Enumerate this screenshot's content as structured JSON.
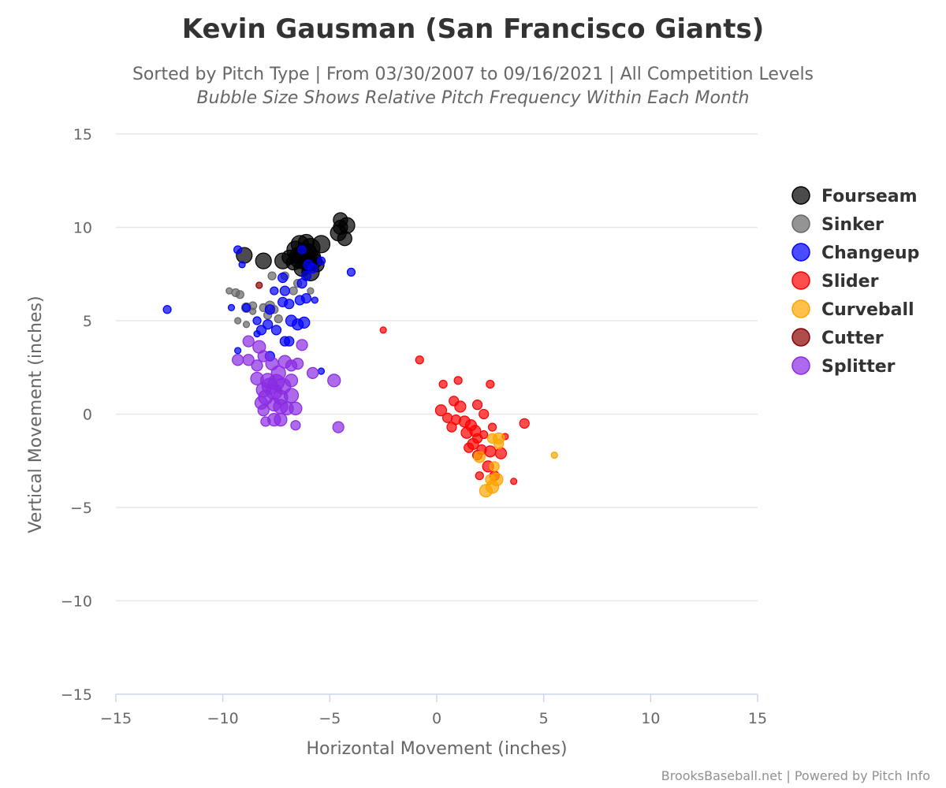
{
  "chart_data": {
    "type": "scatter",
    "title": "Kevin Gausman (San Francisco Giants)",
    "subtitle": "Sorted by Pitch Type | From 03/30/2007 to 09/16/2021 | All Competition Levels",
    "subtitle2": "Bubble Size Shows Relative Pitch Frequency Within Each Month",
    "xlabel": "Horizontal Movement (inches)",
    "ylabel": "Vertical Movement (inches)",
    "xlim": [
      -15,
      15
    ],
    "ylim": [
      -15,
      15
    ],
    "xticks": [
      -15,
      -10,
      -5,
      0,
      5,
      10,
      15
    ],
    "yticks": [
      -15,
      -10,
      -5,
      0,
      5,
      10,
      15
    ],
    "xtick_labels": [
      "−15",
      "−10",
      "−5",
      "0",
      "5",
      "10",
      "15"
    ],
    "ytick_labels": [
      "−15",
      "−10",
      "−5",
      "0",
      "5",
      "10",
      "15"
    ],
    "grid": "horizontal",
    "legend_position": "right",
    "credits": "BrooksBaseball.net | Powered by Pitch Info",
    "series": [
      {
        "name": "Fourseam",
        "color": "#000000",
        "points": [
          [
            -9.0,
            8.5,
            10
          ],
          [
            -8.1,
            8.2,
            10
          ],
          [
            -7.2,
            8.2,
            10
          ],
          [
            -6.9,
            8.4,
            9
          ],
          [
            -6.6,
            8.8,
            11
          ],
          [
            -6.4,
            9.1,
            11
          ],
          [
            -6.1,
            9.2,
            10
          ],
          [
            -5.9,
            8.9,
            12
          ],
          [
            -6.2,
            8.6,
            12
          ],
          [
            -6.4,
            8.3,
            12
          ],
          [
            -6.0,
            8.1,
            11
          ],
          [
            -5.8,
            8.4,
            10
          ],
          [
            -5.6,
            8.0,
            9
          ],
          [
            -5.4,
            9.1,
            11
          ],
          [
            -6.3,
            7.8,
            10
          ],
          [
            -6.7,
            8.1,
            9
          ],
          [
            -5.9,
            7.6,
            11
          ],
          [
            -4.5,
            10.4,
            9
          ],
          [
            -4.5,
            10.0,
            9
          ],
          [
            -4.6,
            9.7,
            10
          ],
          [
            -4.2,
            10.1,
            10
          ],
          [
            -4.3,
            9.4,
            9
          ],
          [
            -6.0,
            8.7,
            10
          ],
          [
            -5.7,
            8.2,
            9
          ],
          [
            -6.5,
            8.5,
            10
          ]
        ]
      },
      {
        "name": "Sinker",
        "color": "#666666",
        "points": [
          [
            -9.7,
            6.6,
            4
          ],
          [
            -9.4,
            6.5,
            5
          ],
          [
            -9.2,
            6.4,
            5
          ],
          [
            -8.9,
            5.7,
            6
          ],
          [
            -8.6,
            5.8,
            5
          ],
          [
            -8.6,
            5.5,
            4
          ],
          [
            -8.1,
            5.7,
            5
          ],
          [
            -7.8,
            5.8,
            6
          ],
          [
            -7.6,
            5.6,
            5
          ],
          [
            -7.4,
            5.1,
            5
          ],
          [
            -7.9,
            5.3,
            5
          ],
          [
            -9.3,
            5.0,
            4
          ],
          [
            -8.9,
            4.8,
            4
          ],
          [
            -7.7,
            7.4,
            5
          ],
          [
            -6.7,
            6.6,
            5
          ],
          [
            -5.9,
            6.6,
            4
          ],
          [
            -7.1,
            7.4,
            5
          ],
          [
            -6.5,
            7.0,
            5
          ]
        ]
      },
      {
        "name": "Changeup",
        "color": "#0000ff",
        "points": [
          [
            -9.3,
            8.8,
            5
          ],
          [
            -9.1,
            8.0,
            4
          ],
          [
            -12.6,
            5.6,
            5
          ],
          [
            -9.6,
            5.7,
            4
          ],
          [
            -8.9,
            5.7,
            5
          ],
          [
            -8.4,
            5.0,
            5
          ],
          [
            -8.2,
            4.5,
            6
          ],
          [
            -7.9,
            4.8,
            6
          ],
          [
            -7.8,
            5.6,
            6
          ],
          [
            -7.5,
            4.5,
            6
          ],
          [
            -7.2,
            6.0,
            6
          ],
          [
            -6.9,
            5.9,
            6
          ],
          [
            -6.8,
            5.0,
            7
          ],
          [
            -6.5,
            4.8,
            7
          ],
          [
            -6.2,
            4.9,
            7
          ],
          [
            -6.4,
            6.1,
            6
          ],
          [
            -6.1,
            6.2,
            6
          ],
          [
            -6.3,
            7.0,
            6
          ],
          [
            -6.1,
            7.4,
            6
          ],
          [
            -6.0,
            8.0,
            6
          ],
          [
            -5.8,
            7.8,
            6
          ],
          [
            -7.2,
            7.3,
            6
          ],
          [
            -7.1,
            6.6,
            6
          ],
          [
            -6.3,
            8.8,
            5
          ],
          [
            -5.4,
            8.2,
            5
          ],
          [
            -4.0,
            7.6,
            5
          ],
          [
            -7.1,
            3.9,
            6
          ],
          [
            -6.9,
            3.9,
            6
          ],
          [
            -7.8,
            3.1,
            6
          ],
          [
            -5.4,
            2.3,
            4
          ],
          [
            -8.4,
            4.3,
            4
          ],
          [
            -9.3,
            3.4,
            4
          ],
          [
            -7.6,
            6.6,
            5
          ],
          [
            -5.7,
            6.1,
            4
          ]
        ]
      },
      {
        "name": "Slider",
        "color": "#ff0000",
        "points": [
          [
            -2.5,
            4.5,
            4
          ],
          [
            -0.8,
            2.9,
            5
          ],
          [
            0.3,
            1.6,
            5
          ],
          [
            1.0,
            1.8,
            5
          ],
          [
            2.5,
            1.6,
            5
          ],
          [
            0.8,
            0.7,
            6
          ],
          [
            1.1,
            0.4,
            7
          ],
          [
            0.2,
            0.2,
            7
          ],
          [
            0.5,
            -0.2,
            6
          ],
          [
            0.9,
            -0.3,
            6
          ],
          [
            1.3,
            -0.4,
            7
          ],
          [
            1.6,
            -0.6,
            7
          ],
          [
            1.8,
            -0.9,
            7
          ],
          [
            1.4,
            -1.0,
            7
          ],
          [
            0.7,
            -0.7,
            6
          ],
          [
            1.9,
            -1.3,
            6
          ],
          [
            2.2,
            -1.1,
            5
          ],
          [
            1.7,
            -1.6,
            7
          ],
          [
            1.5,
            -1.8,
            6
          ],
          [
            2.1,
            -1.9,
            6
          ],
          [
            2.5,
            -2.0,
            7
          ],
          [
            3.0,
            -2.1,
            7
          ],
          [
            1.9,
            -2.2,
            6
          ],
          [
            2.4,
            -2.8,
            7
          ],
          [
            2.7,
            -3.3,
            6
          ],
          [
            2.0,
            -3.3,
            5
          ],
          [
            3.6,
            -3.6,
            4
          ],
          [
            4.1,
            -0.5,
            6
          ],
          [
            3.2,
            -1.2,
            4
          ],
          [
            2.6,
            -0.7,
            5
          ],
          [
            1.9,
            0.5,
            6
          ],
          [
            2.2,
            0.0,
            6
          ]
        ]
      },
      {
        "name": "Curveball",
        "color": "#ffa500",
        "points": [
          [
            2.9,
            -1.3,
            7
          ],
          [
            2.6,
            -1.3,
            6
          ],
          [
            2.9,
            -1.6,
            6
          ],
          [
            2.0,
            -2.3,
            7
          ],
          [
            2.7,
            -2.8,
            6
          ],
          [
            2.8,
            -3.5,
            8
          ],
          [
            2.5,
            -3.5,
            6
          ],
          [
            2.6,
            -3.9,
            8
          ],
          [
            2.3,
            -4.1,
            8
          ],
          [
            5.5,
            -2.2,
            4
          ]
        ]
      },
      {
        "name": "Cutter",
        "color": "#8b0000",
        "points": [
          [
            -8.3,
            6.9,
            4
          ]
        ]
      },
      {
        "name": "Splitter",
        "color": "#8a2be2",
        "points": [
          [
            -8.8,
            3.9,
            7
          ],
          [
            -8.3,
            3.6,
            8
          ],
          [
            -8.1,
            3.1,
            7
          ],
          [
            -9.3,
            2.9,
            7
          ],
          [
            -8.8,
            2.9,
            7
          ],
          [
            -8.4,
            2.6,
            7
          ],
          [
            -7.7,
            2.7,
            8
          ],
          [
            -7.1,
            2.8,
            8
          ],
          [
            -6.8,
            2.6,
            7
          ],
          [
            -6.5,
            2.7,
            7
          ],
          [
            -6.3,
            3.7,
            7
          ],
          [
            -5.8,
            2.2,
            7
          ],
          [
            -4.8,
            1.8,
            8
          ],
          [
            -8.4,
            1.9,
            8
          ],
          [
            -7.9,
            1.8,
            9
          ],
          [
            -7.5,
            1.7,
            10
          ],
          [
            -7.2,
            1.5,
            10
          ],
          [
            -7.6,
            1.2,
            10
          ],
          [
            -8.1,
            1.3,
            9
          ],
          [
            -8.0,
            0.9,
            9
          ],
          [
            -7.3,
            0.9,
            9
          ],
          [
            -6.8,
            1.0,
            9
          ],
          [
            -6.8,
            1.8,
            8
          ],
          [
            -8.2,
            0.6,
            8
          ],
          [
            -7.6,
            0.5,
            8
          ],
          [
            -7.3,
            0.4,
            9
          ],
          [
            -7.0,
            0.3,
            8
          ],
          [
            -6.6,
            0.3,
            8
          ],
          [
            -8.1,
            0.2,
            7
          ],
          [
            -8.0,
            -0.4,
            6
          ],
          [
            -7.6,
            -0.3,
            8
          ],
          [
            -7.3,
            -0.3,
            8
          ],
          [
            -6.6,
            -0.6,
            6
          ],
          [
            -4.6,
            -0.7,
            7
          ],
          [
            -7.4,
            2.2,
            9
          ],
          [
            -7.8,
            1.5,
            10
          ]
        ]
      }
    ]
  }
}
